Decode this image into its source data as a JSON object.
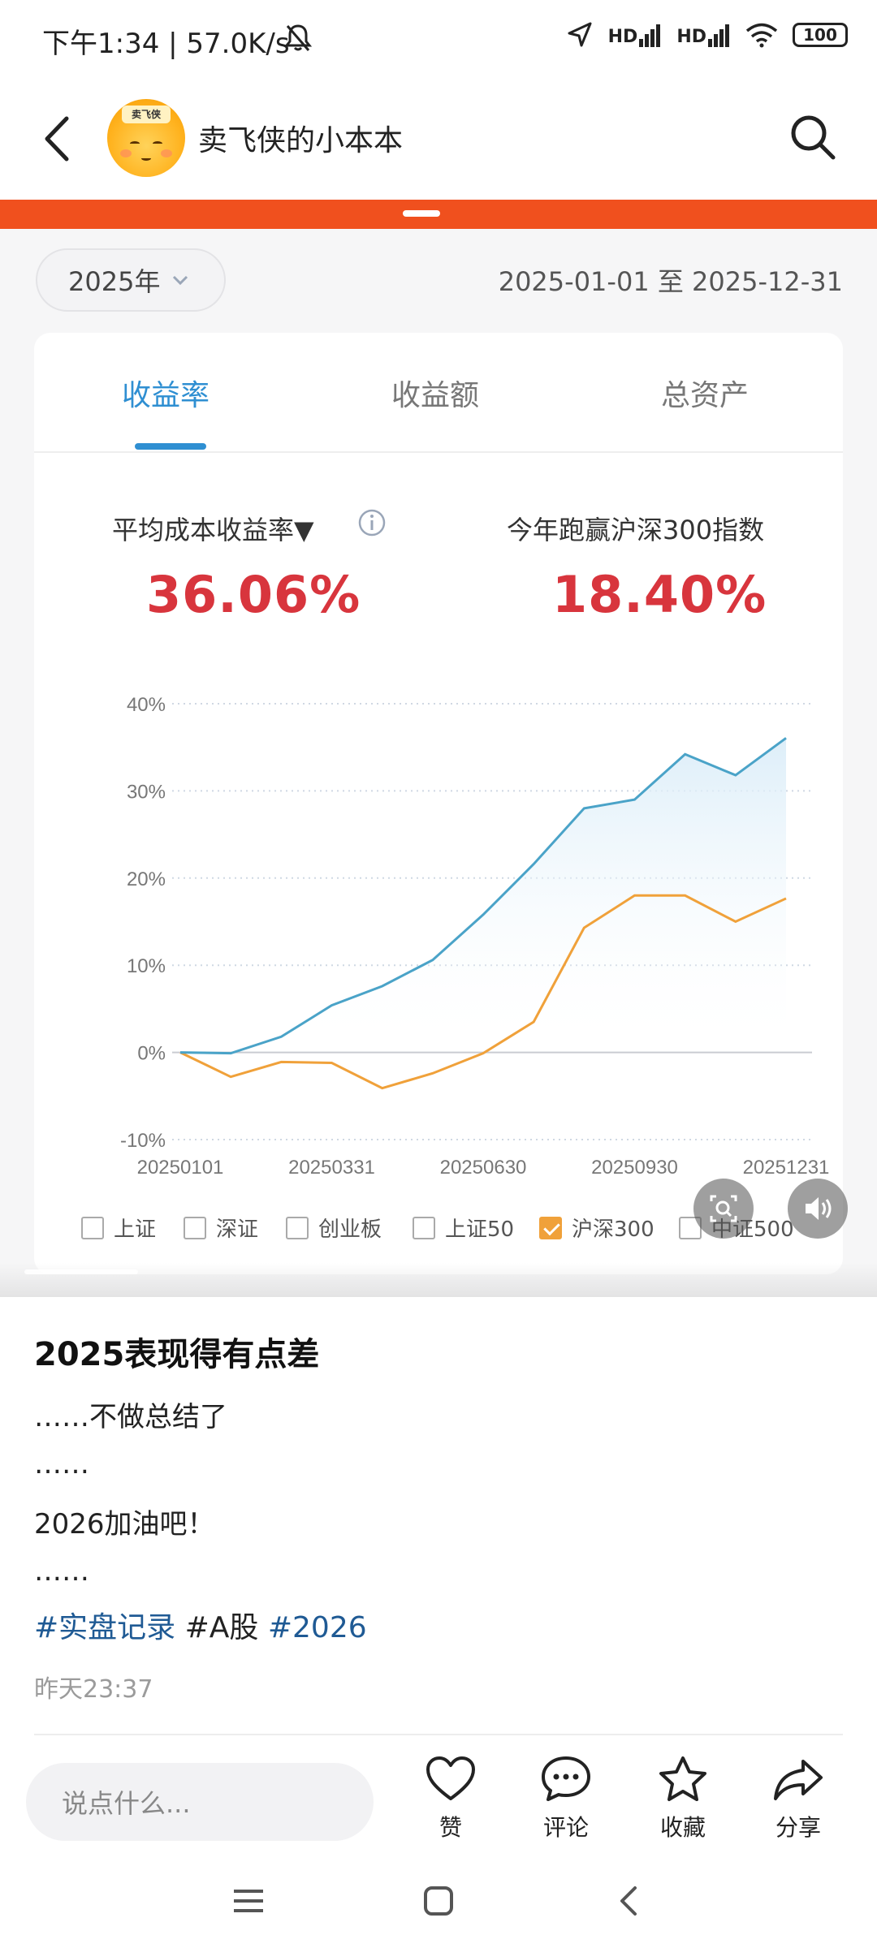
{
  "status_bar": {
    "time_speed": "下午1:34 | 57.0K/s",
    "battery": "100",
    "hd1": "HD",
    "hd2": "HD"
  },
  "header": {
    "nickname": "卖飞侠的小本本",
    "avatar_text": "卖飞侠"
  },
  "screenshot": {
    "year_selector": "2025年",
    "date_range": "2025-01-01 至 2025-12-31",
    "tabs": [
      "收益率",
      "收益额",
      "总资产"
    ],
    "active_tab": 0,
    "metric_left_label": "平均成本收益率▼",
    "metric_left_value": "36.06%",
    "metric_right_label": "今年跑赢沪深300指数",
    "metric_right_value": "18.40%",
    "legend": [
      "上证",
      "深证",
      "创业板",
      "上证50",
      "沪深300",
      "中证500"
    ],
    "legend_checked": [
      false,
      false,
      false,
      false,
      true,
      false
    ]
  },
  "chart_data": {
    "type": "line",
    "y_ticks": [
      "40%",
      "30%",
      "20%",
      "10%",
      "0%",
      "-10%"
    ],
    "x_ticks": [
      "20250101",
      "20250331",
      "20250630",
      "20250930",
      "20251231"
    ],
    "ylim": [
      -10,
      40
    ],
    "grid": true,
    "x": [
      "20250101",
      "20250201",
      "20250301",
      "20250331",
      "20250501",
      "20250601",
      "20250630",
      "20250801",
      "20250901",
      "20250930",
      "20251101",
      "20251201",
      "20251231"
    ],
    "series": [
      {
        "color": "#4aa3c8",
        "values": [
          0,
          -0.1,
          1.8,
          5.4,
          7.6,
          10.6,
          15.8,
          21.6,
          28.0,
          29.0,
          34.2,
          31.8,
          36.06
        ]
      },
      {
        "name": "沪深300",
        "color": "#f0a13a",
        "values": [
          0,
          -2.8,
          -1.1,
          -1.2,
          -4.1,
          -2.4,
          -0.1,
          3.5,
          14.3,
          18.0,
          18.0,
          15.0,
          17.66
        ]
      }
    ]
  },
  "post": {
    "title": "2025表现得有点差",
    "lines": [
      "……不做总结了",
      "……",
      "2026加油吧！",
      "……"
    ],
    "tag1": "#实盘记录",
    "tag2": " #A股 ",
    "tag3": "#2026",
    "time": "昨天23:37"
  },
  "bottom_bar": {
    "comment_placeholder": "说点什么...",
    "like": "赞",
    "comment": "评论",
    "favorite": "收藏",
    "share": "分享"
  },
  "colors": {
    "accent_blue": "#2f8fd2",
    "value_red": "#d8353d",
    "brand_orange": "#f0501e"
  }
}
